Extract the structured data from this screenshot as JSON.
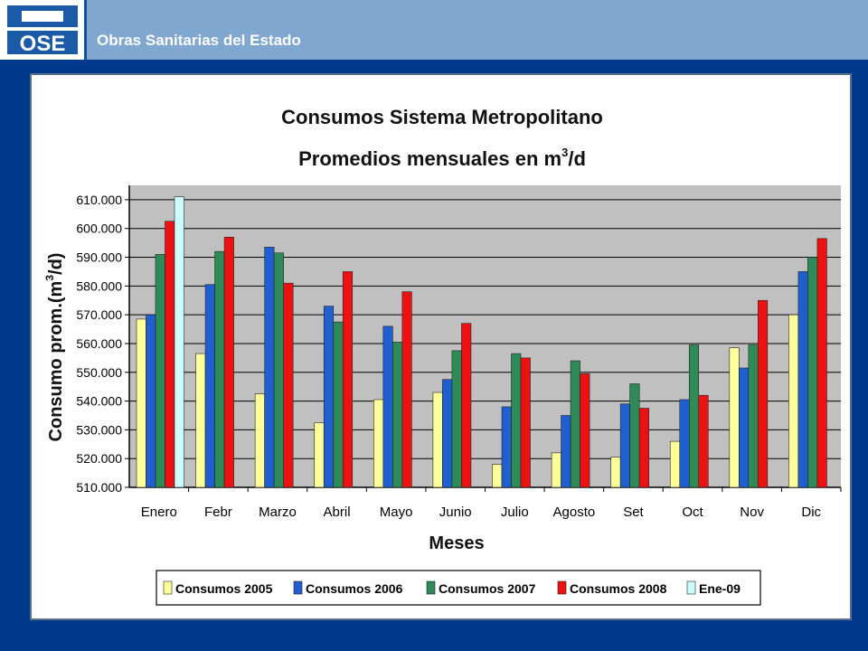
{
  "header": {
    "logo_text": "OSE",
    "organization": "Obras Sanitarias del Estado"
  },
  "colors": {
    "header_bar": "#7FA7CF",
    "page_background": "#003A8C",
    "plot_background": "#C0C0C0"
  },
  "chart_data": {
    "type": "bar",
    "title": "Consumos Sistema Metropolitano",
    "subtitle_prefix": "Promedios mensuales en m",
    "subtitle_sup": "3",
    "subtitle_suffix": "/d",
    "xlabel": "Meses",
    "ylabel_prefix": "Consumo prom.(m",
    "ylabel_sup": "3",
    "ylabel_suffix": "/d)",
    "ylim": [
      510000,
      615000
    ],
    "yticks": [
      {
        "value": 510000,
        "label": "510.000"
      },
      {
        "value": 520000,
        "label": "520.000"
      },
      {
        "value": 530000,
        "label": "530.000"
      },
      {
        "value": 540000,
        "label": "540.000"
      },
      {
        "value": 550000,
        "label": "550.000"
      },
      {
        "value": 560000,
        "label": "560.000"
      },
      {
        "value": 570000,
        "label": "570.000"
      },
      {
        "value": 580000,
        "label": "580.000"
      },
      {
        "value": 590000,
        "label": "590.000"
      },
      {
        "value": 600000,
        "label": "600.000"
      },
      {
        "value": 610000,
        "label": "610.000"
      }
    ],
    "grid": true,
    "legend_position": "bottom",
    "categories": [
      "Enero",
      "Febr",
      "Marzo",
      "Abril",
      "Mayo",
      "Junio",
      "Julio",
      "Agosto",
      "Set",
      "Oct",
      "Nov",
      "Dic"
    ],
    "series": [
      {
        "name": "Consumos 2005",
        "color": "#FFFF99",
        "values": [
          568500,
          556500,
          542500,
          532500,
          540500,
          543000,
          518000,
          522000,
          520500,
          526000,
          558500,
          570000
        ]
      },
      {
        "name": "Consumos 2006",
        "color": "#1F5FD0",
        "values": [
          570000,
          580500,
          593500,
          573000,
          566000,
          547500,
          538000,
          535000,
          539000,
          540500,
          551500,
          585000
        ]
      },
      {
        "name": "Consumos 2007",
        "color": "#2E8B57",
        "values": [
          591000,
          592000,
          591500,
          567500,
          560500,
          557500,
          556500,
          554000,
          546000,
          559500,
          559500,
          590000
        ]
      },
      {
        "name": "Consumos 2008",
        "color": "#EE1111",
        "values": [
          602500,
          597000,
          581000,
          585000,
          578000,
          567000,
          555000,
          549500,
          537500,
          542000,
          575000,
          596500
        ]
      },
      {
        "name": "Ene-09",
        "color": "#CCFFFF",
        "values": [
          611000,
          null,
          null,
          null,
          null,
          null,
          null,
          null,
          null,
          null,
          null,
          null
        ]
      }
    ]
  }
}
